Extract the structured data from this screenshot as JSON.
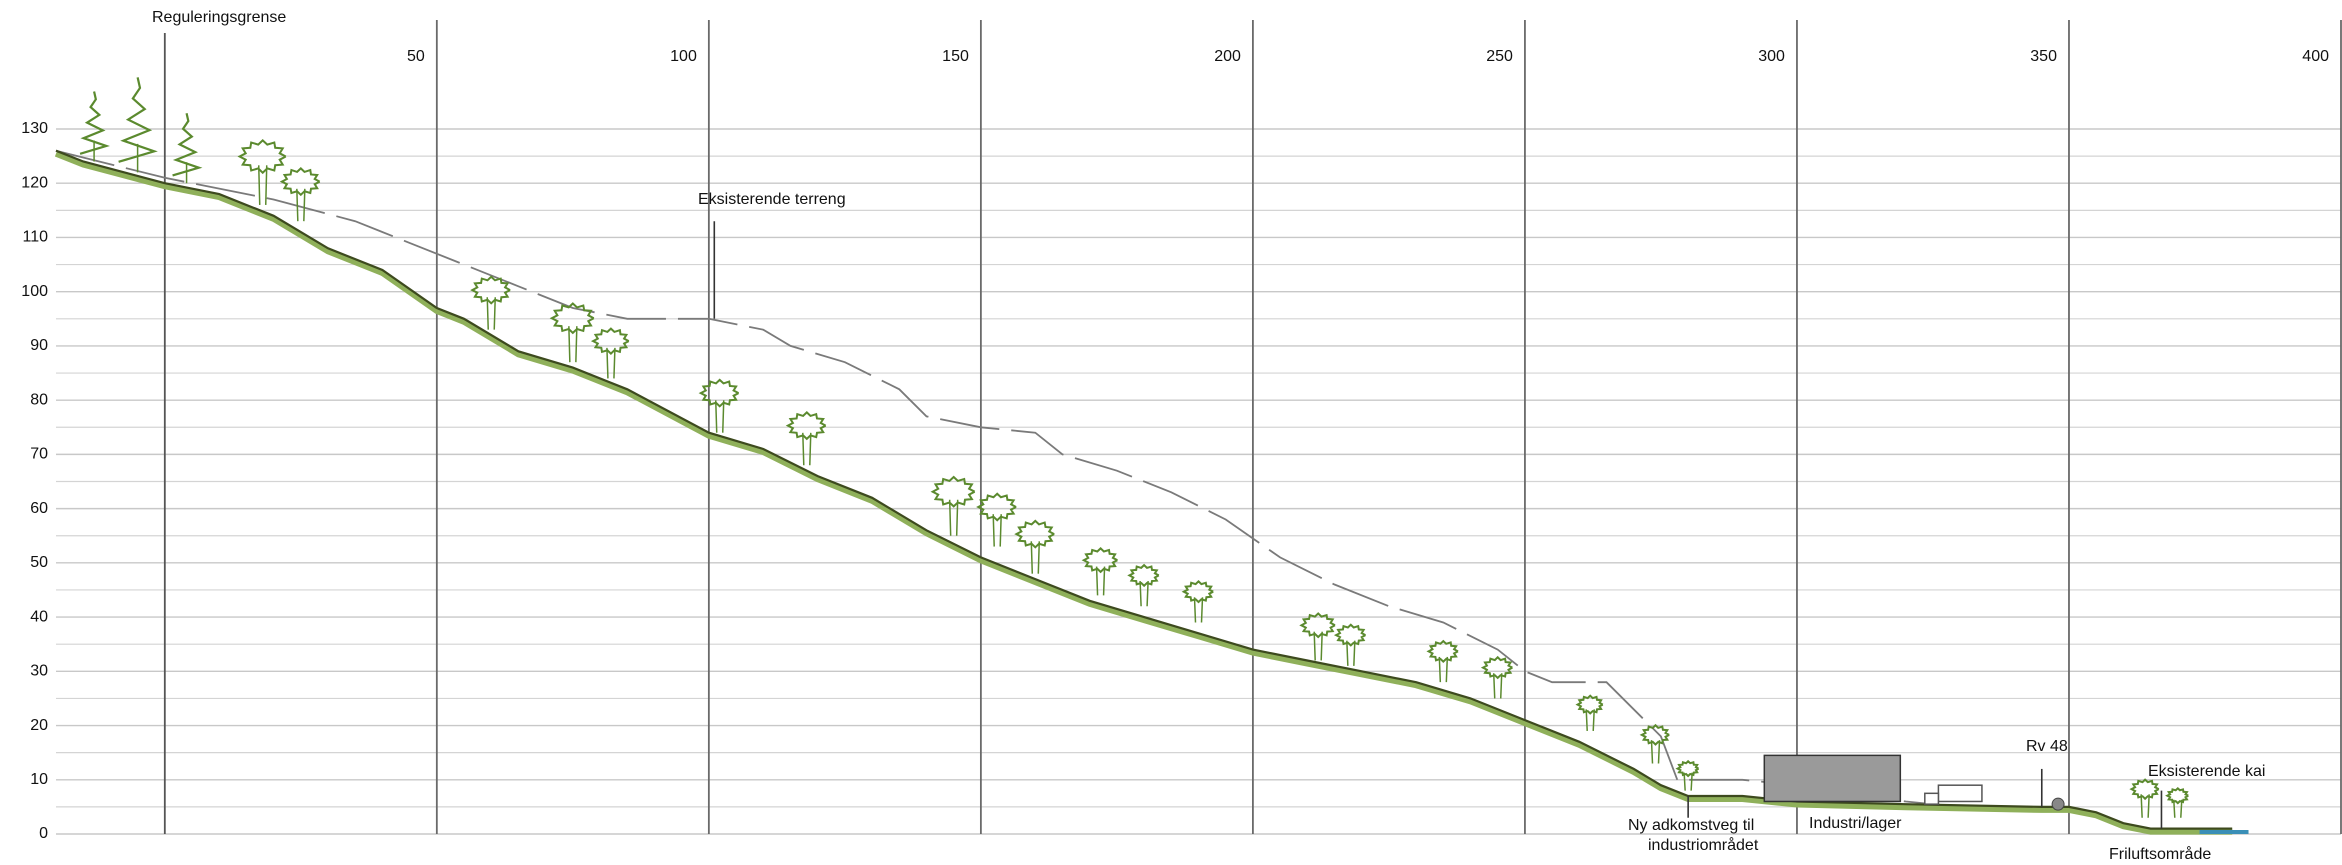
{
  "profile": {
    "xlim": [
      -20,
      400
    ],
    "ylim": [
      0,
      130
    ],
    "xticks": [
      50,
      100,
      150,
      200,
      250,
      300,
      350,
      400
    ],
    "yticks": [
      0,
      10,
      20,
      30,
      40,
      50,
      60,
      70,
      80,
      90,
      100,
      110,
      120,
      130
    ],
    "minor_yticks": [
      5,
      15,
      25,
      35,
      45,
      55,
      65,
      75,
      85,
      95,
      105,
      115,
      125
    ],
    "boundary_x": 0,
    "existing_terrain": {
      "x": [
        -20,
        0,
        20,
        35,
        45,
        55,
        65,
        75,
        85,
        100,
        110,
        115,
        125,
        135,
        140,
        150,
        160,
        165,
        175,
        185,
        195,
        205,
        215,
        225,
        235,
        245,
        250,
        255,
        265,
        270,
        275,
        278,
        290,
        300,
        320,
        330,
        350
      ],
      "y": [
        126,
        121,
        117,
        113,
        109,
        105,
        101,
        97,
        95,
        95,
        93,
        90,
        87,
        82,
        77,
        75,
        74,
        70,
        67,
        63,
        58,
        51,
        46,
        42,
        39,
        34,
        30,
        28,
        28,
        23,
        18,
        10,
        10,
        9,
        6,
        5,
        5
      ]
    },
    "new_terrain": {
      "x": [
        -20,
        -15,
        0,
        10,
        20,
        30,
        40,
        50,
        55,
        65,
        75,
        85,
        100,
        110,
        120,
        130,
        140,
        150,
        160,
        170,
        180,
        190,
        200,
        210,
        220,
        230,
        240,
        250,
        260,
        270,
        275,
        280,
        290,
        300,
        320,
        345,
        350,
        355,
        360,
        365,
        380
      ],
      "y": [
        126,
        124,
        120,
        118,
        114,
        108,
        104,
        97,
        95,
        89,
        86,
        82,
        74,
        71,
        66,
        62,
        56,
        51,
        47,
        43,
        40,
        37,
        34,
        32,
        30,
        28,
        25,
        21,
        17,
        12,
        9,
        7,
        7,
        6,
        5.5,
        5,
        5,
        4,
        2,
        1,
        1
      ]
    }
  },
  "labels": {
    "regulation_boundary": "Reguleringsgrense",
    "existing_terrain": "Eksisterende terreng",
    "new_road": [
      "Ny adkomstveg til",
      "industriområdet"
    ],
    "industry": "Industri/lager",
    "road": "Rv 48",
    "quay": "Eksisterende kai",
    "recreation": "Friluftsområde"
  }
}
